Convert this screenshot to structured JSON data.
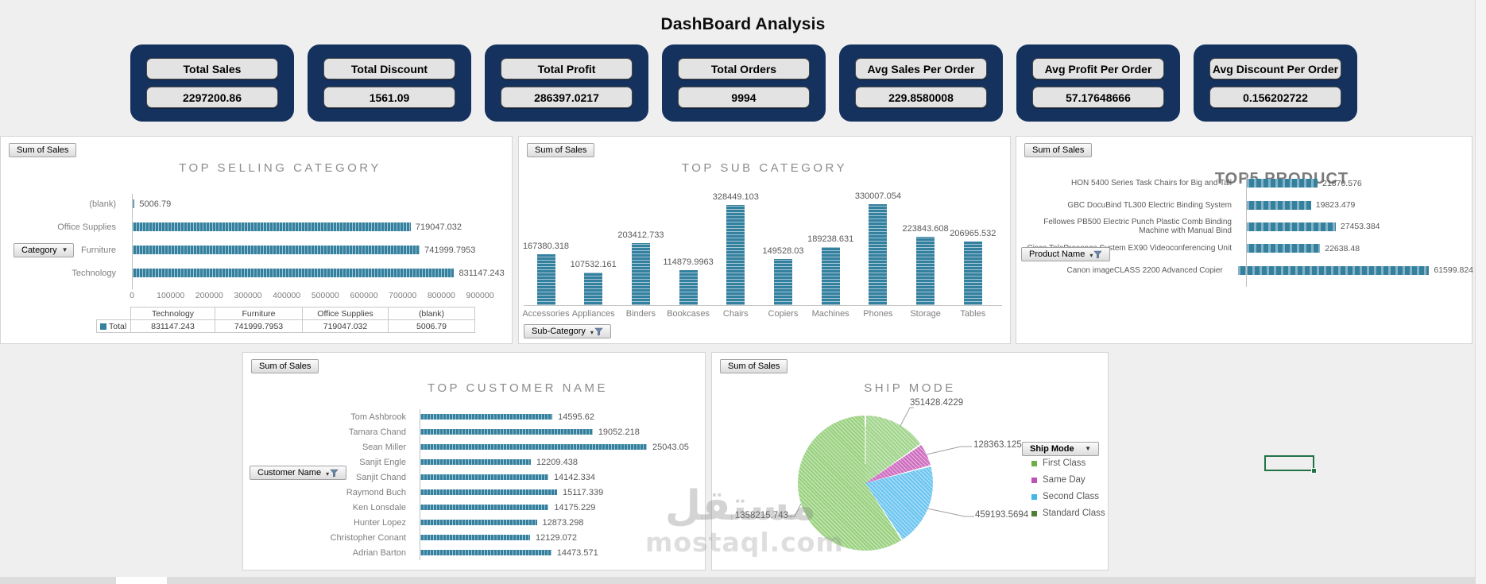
{
  "title": "DashBoard Analysis",
  "watermark": {
    "arabic": "مستقل",
    "domain": "mostaql.com"
  },
  "kpi_cards": [
    {
      "label": "Total Sales",
      "value": "2297200.86"
    },
    {
      "label": "Total Discount",
      "value": "1561.09"
    },
    {
      "label": "Total Profit",
      "value": "286397.0217"
    },
    {
      "label": "Total Orders",
      "value": "9994"
    },
    {
      "label": "Avg Sales Per Order",
      "value": "229.8580008"
    },
    {
      "label": "Avg Profit Per Order",
      "value": "57.17648666"
    },
    {
      "label": "Avg Discount Per Order",
      "value": "0.156202722"
    }
  ],
  "colors": {
    "bar": "#34809f",
    "card_navy": "#15325f",
    "selection_green": "#217346",
    "pie_slices": [
      "#a2d58d",
      "#cf6fc0",
      "#6ec6f0",
      "#9bd281"
    ],
    "legend_swatches": [
      "#71ad47",
      "#bd52b4",
      "#45b6ea",
      "#507e32"
    ]
  },
  "charts": {
    "category": {
      "field_button": "Sum of Sales",
      "filter_button": "Category",
      "title": "TOP SELLING CATEGORY",
      "rows": [
        {
          "label": "(blank)",
          "value": 5006.79,
          "value_label": "5006.79"
        },
        {
          "label": "Office Supplies",
          "value": 719047.032,
          "value_label": "719047.032"
        },
        {
          "label": "Furniture",
          "value": 741999.7953,
          "value_label": "741999.7953"
        },
        {
          "label": "Technology",
          "value": 831147.243,
          "value_label": "831147.243"
        }
      ],
      "axis_max": 900000,
      "axis_ticks": [
        "0",
        "100000",
        "200000",
        "300000",
        "400000",
        "500000",
        "600000",
        "700000",
        "800000",
        "900000"
      ],
      "table": {
        "legend_label": "Total",
        "headers": [
          "Technology",
          "Furniture",
          "Office Supplies",
          "(blank)"
        ],
        "values": [
          "831147.243",
          "741999.7953",
          "719047.032",
          "5006.79"
        ]
      }
    },
    "sub_category": {
      "field_button": "Sum of Sales",
      "filter_button": "Sub-Category",
      "title": "TOP SUB CATEGORY",
      "columns": [
        {
          "label": "Accessories",
          "value": 167380.318,
          "value_label": "167380.318"
        },
        {
          "label": "Appliances",
          "value": 107532.161,
          "value_label": "107532.161"
        },
        {
          "label": "Binders",
          "value": 203412.733,
          "value_label": "203412.733"
        },
        {
          "label": "Bookcases",
          "value": 114879.9963,
          "value_label": "114879.9963"
        },
        {
          "label": "Chairs",
          "value": 328449.103,
          "value_label": "328449.103"
        },
        {
          "label": "Copiers",
          "value": 149528.03,
          "value_label": "149528.03"
        },
        {
          "label": "Machines",
          "value": 189238.631,
          "value_label": "189238.631"
        },
        {
          "label": "Phones",
          "value": 330007.054,
          "value_label": "330007.054"
        },
        {
          "label": "Storage",
          "value": 223843.608,
          "value_label": "223843.608"
        },
        {
          "label": "Tables",
          "value": 206965.532,
          "value_label": "206965.532"
        }
      ]
    },
    "top5_product": {
      "field_button": "Sum of Sales",
      "filter_button": "Product Name",
      "title": "TOP5 PRODUCT",
      "rows": [
        {
          "label": "HON 5400 Series Task Chairs for Big and Tall",
          "value": 21870.576,
          "value_label": "21870.576"
        },
        {
          "label": "GBC DocuBind TL300 Electric Binding System",
          "value": 19823.479,
          "value_label": "19823.479"
        },
        {
          "label": "Fellowes PB500 Electric Punch Plastic Comb Binding Machine with Manual Bind",
          "value": 27453.384,
          "value_label": "27453.384"
        },
        {
          "label": "Cisco TelePresence System EX90 Videoconferencing Unit",
          "value": 22638.48,
          "value_label": "22638.48"
        },
        {
          "label": "Canon imageCLASS 2200 Advanced Copier",
          "value": 61599.824,
          "value_label": "61599.824"
        }
      ]
    },
    "top_customer": {
      "field_button": "Sum of Sales",
      "filter_button": "Customer Name",
      "title": "TOP CUSTOMER NAME",
      "rows": [
        {
          "label": "Tom Ashbrook",
          "value": 14595.62,
          "value_label": "14595.62"
        },
        {
          "label": "Tamara Chand",
          "value": 19052.218,
          "value_label": "19052.218"
        },
        {
          "label": "Sean Miller",
          "value": 25043.05,
          "value_label": "25043.05"
        },
        {
          "label": "Sanjit Engle",
          "value": 12209.438,
          "value_label": "12209.438"
        },
        {
          "label": "Sanjit Chand",
          "value": 14142.334,
          "value_label": "14142.334"
        },
        {
          "label": "Raymond Buch",
          "value": 15117.339,
          "value_label": "15117.339"
        },
        {
          "label": "Ken Lonsdale",
          "value": 14175.229,
          "value_label": "14175.229"
        },
        {
          "label": "Hunter Lopez",
          "value": 12873.298,
          "value_label": "12873.298"
        },
        {
          "label": "Christopher Conant",
          "value": 12129.072,
          "value_label": "12129.072"
        },
        {
          "label": "Adrian Barton",
          "value": 14473.571,
          "value_label": "14473.571"
        }
      ]
    },
    "ship_mode": {
      "field_button": "Sum of Sales",
      "filter_button": "Ship Mode",
      "title": "SHIP MODE",
      "slices": [
        {
          "label": "First Class",
          "value": 351428.4229,
          "value_label": "351428.4229"
        },
        {
          "label": "Same Day",
          "value": 128363.125,
          "value_label": "128363.125"
        },
        {
          "label": "Second Class",
          "value": 459193.5694,
          "value_label": "459193.5694"
        },
        {
          "label": "Standard Class",
          "value": 1358215.743,
          "value_label": "1358215.743"
        }
      ]
    }
  },
  "chart_data": [
    {
      "type": "bar",
      "orientation": "horizontal",
      "title": "TOP SELLING CATEGORY",
      "series_name": "Sum of Sales",
      "categories": [
        "(blank)",
        "Office Supplies",
        "Furniture",
        "Technology"
      ],
      "values": [
        5006.79,
        719047.032,
        741999.7953,
        831147.243
      ],
      "xlim": [
        0,
        900000
      ],
      "x_ticks": [
        0,
        100000,
        200000,
        300000,
        400000,
        500000,
        600000,
        700000,
        800000,
        900000
      ],
      "data_table": {
        "row": "Total",
        "columns": [
          "Technology",
          "Furniture",
          "Office Supplies",
          "(blank)"
        ],
        "values": [
          831147.243,
          741999.7953,
          719047.032,
          5006.79
        ]
      }
    },
    {
      "type": "bar",
      "orientation": "vertical",
      "title": "TOP SUB CATEGORY",
      "series_name": "Sum of Sales",
      "categories": [
        "Accessories",
        "Appliances",
        "Binders",
        "Bookcases",
        "Chairs",
        "Copiers",
        "Machines",
        "Phones",
        "Storage",
        "Tables"
      ],
      "values": [
        167380.318,
        107532.161,
        203412.733,
        114879.9963,
        328449.103,
        149528.03,
        189238.631,
        330007.054,
        223843.608,
        206965.532
      ],
      "data_labels": true,
      "grid": false
    },
    {
      "type": "bar",
      "orientation": "horizontal",
      "title": "TOP5 PRODUCT",
      "series_name": "Sum of Sales",
      "categories": [
        "HON 5400 Series Task Chairs for Big and Tall",
        "GBC DocuBind TL300 Electric Binding System",
        "Fellowes PB500 Electric Punch Plastic Comb Binding Machine with Manual Bind",
        "Cisco TelePresence System EX90 Videoconferencing Unit",
        "Canon imageCLASS 2200 Advanced Copier"
      ],
      "values": [
        21870.576,
        19823.479,
        27453.384,
        22638.48,
        61599.824
      ],
      "data_labels": true,
      "grid": false
    },
    {
      "type": "bar",
      "orientation": "horizontal",
      "title": "TOP CUSTOMER NAME",
      "series_name": "Sum of Sales",
      "categories": [
        "Tom Ashbrook",
        "Tamara Chand",
        "Sean Miller",
        "Sanjit Engle",
        "Sanjit Chand",
        "Raymond Buch",
        "Ken Lonsdale",
        "Hunter Lopez",
        "Christopher Conant",
        "Adrian Barton"
      ],
      "values": [
        14595.62,
        19052.218,
        25043.05,
        12209.438,
        14142.334,
        15117.339,
        14175.229,
        12873.298,
        12129.072,
        14473.571
      ],
      "data_labels": true,
      "grid": false
    },
    {
      "type": "pie",
      "title": "SHIP MODE",
      "series_name": "Sum of Sales",
      "categories": [
        "First Class",
        "Same Day",
        "Second Class",
        "Standard Class"
      ],
      "values": [
        351428.4229,
        128363.125,
        459193.5694,
        1358215.743
      ],
      "legend_position": "right",
      "data_labels": true
    }
  ]
}
